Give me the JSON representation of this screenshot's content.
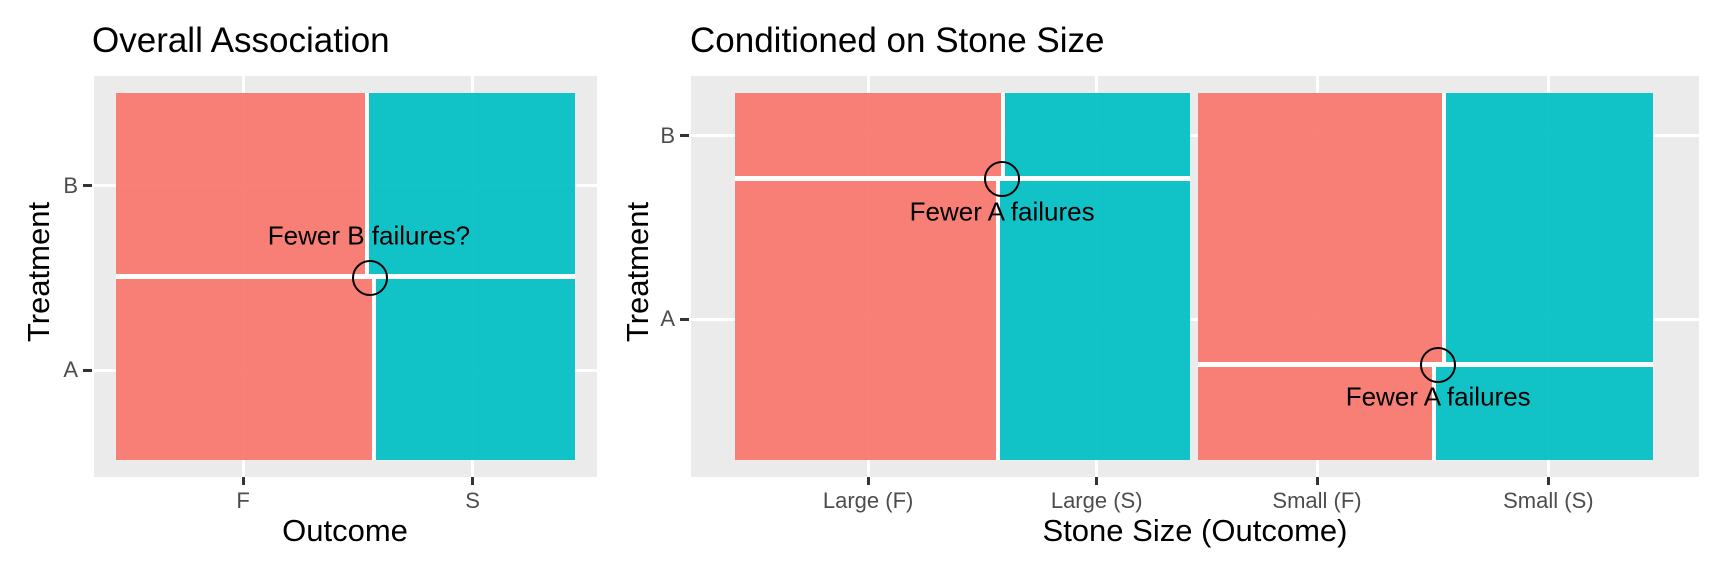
{
  "chart_data": {
    "type": "mosaic",
    "description": "Two mosaic plots of Treatment (A/B) vs Outcome (F/S); right plot conditioned on stone size (Simpson's paradox illustration)",
    "colors": {
      "failure_fill": "#F8766D",
      "success_fill": "#00BFC4",
      "panel_bg": "#EBEBEB",
      "gridline": "#FFFFFF",
      "tick_label": "#4D4D4D",
      "text": "#000000"
    },
    "plots": [
      {
        "title": "Overall Association",
        "x_axis": {
          "label": "Outcome",
          "ticks": [
            {
              "label": "F",
              "f": 0.277
            },
            {
              "label": "S",
              "f": 0.777
            }
          ]
        },
        "y_axis": {
          "label": "Treatment",
          "ticks": [
            {
              "label": "B",
              "f": 0.253
            },
            {
              "label": "A",
              "f": 0.755
            }
          ]
        },
        "cells": [
          {
            "name": "B-F",
            "treatment": "B",
            "outcome": "F",
            "fill": "failure_fill",
            "x0": 0,
            "x1": 0.547,
            "y0": 0,
            "y1": 0.501
          },
          {
            "name": "B-S",
            "treatment": "B",
            "outcome": "S",
            "fill": "success_fill",
            "x0": 0.547,
            "x1": 1,
            "y0": 0,
            "y1": 0.501
          },
          {
            "name": "A-F",
            "treatment": "A",
            "outcome": "F",
            "fill": "failure_fill",
            "x0": 0,
            "x1": 0.562,
            "y0": 0.501,
            "y1": 1
          },
          {
            "name": "A-S",
            "treatment": "A",
            "outcome": "S",
            "fill": "success_fill",
            "x0": 0.562,
            "x1": 1,
            "y0": 0.501,
            "y1": 1
          }
        ],
        "dividers": [
          {
            "o": "h",
            "f": 0.501,
            "a0": 0,
            "a1": 1,
            "t": 5
          },
          {
            "o": "v",
            "f": 0.547,
            "a0": 0,
            "a1": 0.501,
            "t": 4
          },
          {
            "o": "v",
            "f": 0.562,
            "a0": 0.501,
            "a1": 1,
            "t": 4
          }
        ],
        "circles": [
          {
            "fx": 0.553,
            "fy": 0.504,
            "r": 18
          }
        ],
        "annotations": [
          {
            "text": "Fewer B failures?",
            "fx": 0.551,
            "fy": 0.39
          }
        ]
      },
      {
        "title": "Conditioned on Stone Size",
        "x_axis": {
          "label": "Stone Size (Outcome)",
          "ticks": [
            {
              "label": "Large (F)",
              "f": 0.145
            },
            {
              "label": "Large (S)",
              "f": 0.394
            },
            {
              "label": "Small (F)",
              "f": 0.634
            },
            {
              "label": "Small (S)",
              "f": 0.886
            }
          ]
        },
        "y_axis": {
          "label": "Treatment",
          "ticks": [
            {
              "label": "B",
              "f": 0.117
            },
            {
              "label": "A",
              "f": 0.616
            }
          ]
        },
        "cells": [
          {
            "name": "Large-B-F",
            "stone": "Large",
            "treatment": "B",
            "outcome": "F",
            "fill": "failure_fill",
            "x0": 0,
            "x1": 0.292,
            "y0": 0,
            "y1": 0.233
          },
          {
            "name": "Large-B-S",
            "stone": "Large",
            "treatment": "B",
            "outcome": "S",
            "fill": "success_fill",
            "x0": 0.292,
            "x1": 0.496,
            "y0": 0,
            "y1": 0.233
          },
          {
            "name": "Large-A-F",
            "stone": "Large",
            "treatment": "A",
            "outcome": "F",
            "fill": "failure_fill",
            "x0": 0,
            "x1": 0.287,
            "y0": 0.233,
            "y1": 1
          },
          {
            "name": "Large-A-S",
            "stone": "Large",
            "treatment": "A",
            "outcome": "S",
            "fill": "success_fill",
            "x0": 0.287,
            "x1": 0.496,
            "y0": 0.233,
            "y1": 1
          },
          {
            "name": "Small-B-F",
            "stone": "Small",
            "treatment": "B",
            "outcome": "F",
            "fill": "failure_fill",
            "x0": 0.504,
            "x1": 0.772,
            "y0": 0,
            "y1": 0.74
          },
          {
            "name": "Small-B-S",
            "stone": "Small",
            "treatment": "B",
            "outcome": "S",
            "fill": "success_fill",
            "x0": 0.772,
            "x1": 1,
            "y0": 0,
            "y1": 0.74
          },
          {
            "name": "Small-A-F",
            "stone": "Small",
            "treatment": "A",
            "outcome": "F",
            "fill": "failure_fill",
            "x0": 0.504,
            "x1": 0.761,
            "y0": 0.74,
            "y1": 1
          },
          {
            "name": "Small-A-S",
            "stone": "Small",
            "treatment": "A",
            "outcome": "S",
            "fill": "success_fill",
            "x0": 0.761,
            "x1": 1,
            "y0": 0.74,
            "y1": 1
          }
        ],
        "dividers": [
          {
            "o": "h",
            "f": 0.233,
            "a0": 0,
            "a1": 0.496,
            "t": 5
          },
          {
            "o": "h",
            "f": 0.74,
            "a0": 0.504,
            "a1": 1,
            "t": 5
          },
          {
            "o": "v",
            "f": 0.292,
            "a0": 0,
            "a1": 0.233,
            "t": 4
          },
          {
            "o": "v",
            "f": 0.287,
            "a0": 0.233,
            "a1": 1,
            "t": 4
          },
          {
            "o": "v",
            "f": 0.772,
            "a0": 0,
            "a1": 0.74,
            "t": 4
          },
          {
            "o": "v",
            "f": 0.761,
            "a0": 0.74,
            "a1": 1,
            "t": 4
          }
        ],
        "circles": [
          {
            "fx": 0.291,
            "fy": 0.233,
            "r": 18
          },
          {
            "fx": 0.766,
            "fy": 0.74,
            "r": 18
          }
        ],
        "annotations": [
          {
            "text": "Fewer A failures",
            "fx": 0.291,
            "fy": 0.324
          },
          {
            "text": "Fewer A failures",
            "fx": 0.766,
            "fy": 0.828
          }
        ]
      }
    ]
  }
}
